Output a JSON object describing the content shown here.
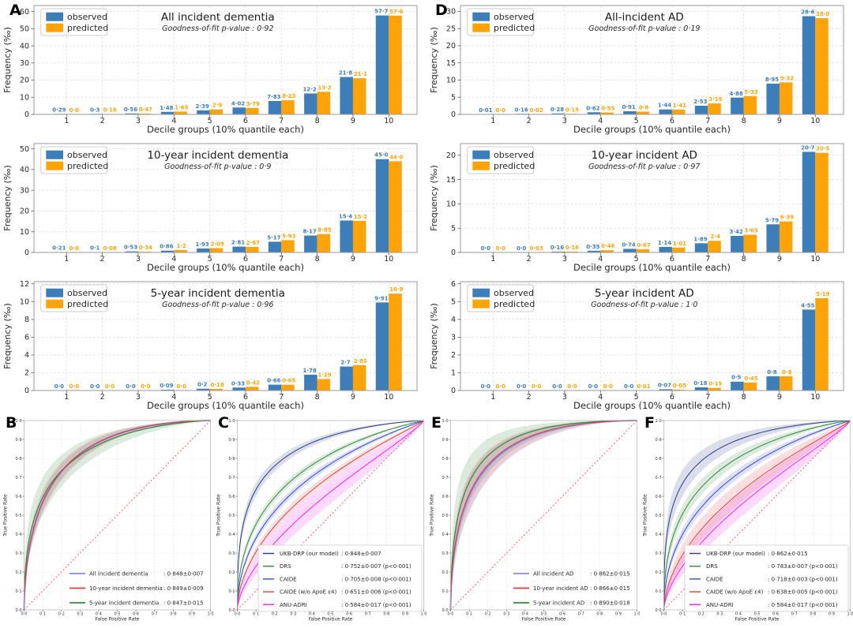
{
  "panel_letters": {
    "A": "A",
    "B": "B",
    "C": "C",
    "D": "D",
    "E": "E",
    "F": "F"
  },
  "chart_data": {
    "bar_common": {
      "type": "bar",
      "xlabel": "Decile groups (10% quantile each)",
      "ylabel": "Frequency (‰)",
      "categories": [
        "1",
        "2",
        "3",
        "4",
        "5",
        "6",
        "7",
        "8",
        "9",
        "10"
      ],
      "legend": {
        "observed": "observed",
        "predicted": "predicted"
      },
      "colors": {
        "observed": "#3d7eb8",
        "predicted": "#ffa408"
      },
      "legend_position": "upper left",
      "grid": true
    },
    "bar_charts": [
      {
        "title": "All incident dementia",
        "subtitle": "Goodness-of-fit p-value : 0·92",
        "observed": [
          0.29,
          0.3,
          0.56,
          1.48,
          2.39,
          4.02,
          7.83,
          12.2,
          21.8,
          57.7
        ],
        "predicted": [
          0.0,
          0.16,
          0.47,
          1.65,
          2.9,
          3.79,
          8.23,
          13.2,
          21.1,
          57.6
        ],
        "observed_labels": [
          "0·29",
          "0·3",
          "0·56",
          "1·48",
          "2·39",
          "4·02",
          "7·83",
          "12·2",
          "21·8",
          "57·7"
        ],
        "predicted_labels": [
          "0·0",
          "0·16",
          "0·47",
          "1·65",
          "2·9",
          "3·79",
          "8·23",
          "13·2",
          "21·1",
          "57·6"
        ],
        "ymax": 60,
        "ystep": 10,
        "ylim": 63.5
      },
      {
        "title": "10-year incident dementia",
        "subtitle": "Goodness-of-fit p-value : 0·9",
        "observed": [
          0.21,
          0.1,
          0.53,
          0.86,
          1.93,
          2.81,
          5.17,
          8.17,
          15.4,
          45.0
        ],
        "predicted": [
          0.0,
          0.08,
          0.34,
          1.2,
          2.09,
          2.67,
          5.93,
          8.85,
          15.2,
          44.0
        ],
        "observed_labels": [
          "0·21",
          "0·1",
          "0·53",
          "0·86",
          "1·93",
          "2·81",
          "5·17",
          "8·17",
          "15·4",
          "45·0"
        ],
        "predicted_labels": [
          "0·0",
          "0·08",
          "0·34",
          "1·2",
          "2·09",
          "2·67",
          "5·93",
          "8·85",
          "15·2",
          "44·0"
        ],
        "ymax": 50,
        "ystep": 10,
        "ylim": 52.5
      },
      {
        "title": "5-year incident dementia",
        "subtitle": "Goodness-of-fit p-value : 0·96",
        "observed": [
          0.0,
          0.0,
          0.0,
          0.09,
          0.2,
          0.33,
          0.66,
          1.78,
          2.7,
          9.91
        ],
        "predicted": [
          0.0,
          0.0,
          0.0,
          0.0,
          0.18,
          0.42,
          0.65,
          1.29,
          2.85,
          10.9
        ],
        "observed_labels": [
          "0·0",
          "0·0",
          "0·0",
          "0·09",
          "0·2",
          "0·33",
          "0·66",
          "1·78",
          "2·7",
          "9·91"
        ],
        "predicted_labels": [
          "0·0",
          "0·0",
          "0·0",
          "0·0",
          "0·18",
          "0·42",
          "0·65",
          "1·29",
          "2·85",
          "10·9"
        ],
        "ymax": 12,
        "ystep": 2,
        "ylim": 12.25
      },
      {
        "title": "All-incident AD",
        "subtitle": "Goodness-of-fit p-value : 0·19",
        "observed": [
          0.01,
          0.16,
          0.28,
          0.62,
          0.91,
          1.44,
          2.53,
          4.88,
          8.95,
          28.6
        ],
        "predicted": [
          0.0,
          0.02,
          0.15,
          0.55,
          0.8,
          1.41,
          3.19,
          5.33,
          9.32,
          28.0
        ],
        "observed_labels": [
          "0·01",
          "0·16",
          "0·28",
          "0·62",
          "0·91",
          "1·44",
          "2·53",
          "4·88",
          "8·95",
          "28·6"
        ],
        "predicted_labels": [
          "0·0",
          "0·02",
          "0·15",
          "0·55",
          "0·8",
          "1·41",
          "3·19",
          "5·33",
          "9·32",
          "28·0"
        ],
        "ymax": 30,
        "ystep": 5,
        "ylim": 31.7
      },
      {
        "title": "10-year incident AD",
        "subtitle": "Goodness-of-fit p-value : 0·97",
        "observed": [
          0.0,
          0.0,
          0.16,
          0.35,
          0.74,
          1.14,
          1.89,
          3.42,
          5.79,
          20.7
        ],
        "predicted": [
          0.0,
          0.03,
          0.16,
          0.46,
          0.67,
          1.01,
          2.4,
          3.65,
          6.39,
          20.5
        ],
        "observed_labels": [
          "0·0",
          "0·0",
          "0·16",
          "0·35",
          "0·74",
          "1·14",
          "1·89",
          "3·42",
          "5·79",
          "20·7"
        ],
        "predicted_labels": [
          "0·0",
          "0·03",
          "0·16",
          "0·46",
          "0·67",
          "1·01",
          "2·4",
          "3·65",
          "6·39",
          "20·5"
        ],
        "ymax": 20,
        "ystep": 5,
        "ylim": 22.4
      },
      {
        "title": "5-year incident AD",
        "subtitle": "Goodness-of-fit p-value : 1·0",
        "observed": [
          0.0,
          0.0,
          0.0,
          0.0,
          0.0,
          0.07,
          0.18,
          0.5,
          0.8,
          4.55
        ],
        "predicted": [
          0.0,
          0.0,
          0.0,
          0.0,
          0.01,
          0.05,
          0.15,
          0.45,
          0.8,
          5.19
        ],
        "observed_labels": [
          "0·0",
          "0·0",
          "0·0",
          "0·0",
          "0·0",
          "0·07",
          "0·18",
          "0·5",
          "0·8",
          "4·55"
        ],
        "predicted_labels": [
          "0·0",
          "0·0",
          "0·0",
          "0·0",
          "0·01",
          "0·05",
          "0·15",
          "0·45",
          "0·8",
          "5·19"
        ],
        "ymax": 6,
        "ystep": 1,
        "ylim": 6.12
      }
    ],
    "roc_common": {
      "type": "line",
      "xlabel": "False Positive Rate",
      "ylabel": "True Positive Rate",
      "ticks": [
        "0·0",
        "0·1",
        "0·2",
        "0·3",
        "0·4",
        "0·5",
        "0·6",
        "0·7",
        "0·8",
        "0·9",
        "1·0"
      ],
      "xlim": [
        0,
        1
      ],
      "ylim": [
        0,
        1
      ],
      "diagonal_color": "#ff5252",
      "grid": true
    },
    "roc_charts": [
      {
        "legend_boxed": false,
        "legend_x": 88,
        "slope": 1.0,
        "boost": 0,
        "series": [
          {
            "name": "All incident dementia",
            "auc": 0.848,
            "auc_label": ": 0·848±0·007",
            "color": "#8888e8",
            "band": 0.02,
            "width": 2.0
          },
          {
            "name": "5-year incident dementia",
            "auc": 0.847,
            "auc_label": ": 0·847±0·015",
            "color": "#2e8b37",
            "band": 0.045,
            "width": 1.2,
            "slope": 0.88,
            "legend_row": 2
          },
          {
            "name": "10-year incident dementia",
            "auc": 0.849,
            "auc_label": ": 0·849±0·009",
            "color": "#e03c3c",
            "band": 0.024,
            "width": 1.0,
            "legend_row": 1
          }
        ]
      },
      {
        "legend_boxed": true,
        "legend_x": 63,
        "slope": 0.82,
        "boost": 0.012,
        "series": [
          {
            "name": "ANU-ADRI",
            "auc": 0.584,
            "auc_label": ": 0·584±0·017 (p<0·001)",
            "color": "#ff1fff",
            "band": 0.048,
            "width": 1.0,
            "legend_row": 4
          },
          {
            "name": "CAIDE (w/o ApoE ε4)",
            "auc": 0.651,
            "auc_label": ": 0·651±0·006 (p<0·001)",
            "color": "#dd4444",
            "band": 0.018,
            "width": 1.0,
            "legend_row": 3
          },
          {
            "name": "CAIDE",
            "auc": 0.705,
            "auc_label": ": 0·705±0·008 (p<0·001)",
            "color": "#3347d1",
            "band": 0.014,
            "width": 1.0,
            "legend_row": 2
          },
          {
            "name": "DRS",
            "auc": 0.752,
            "auc_label": ": 0·752±0·007 (p<0·001)",
            "color": "#2e8b3c",
            "band": 0.014,
            "width": 1.0,
            "legend_row": 1
          },
          {
            "name": "UKB-DRP (our model)",
            "auc": 0.848,
            "auc_label": ": 0·848±0·007",
            "color": "#2c3a88",
            "band": 0.016,
            "width": 1.0,
            "legend_row": 0
          }
        ]
      },
      {
        "legend_boxed": false,
        "legend_x": 110,
        "slope": 1.0,
        "boost": 0,
        "series": [
          {
            "name": "All incident AD",
            "auc": 0.862,
            "auc_label": ": 0·862±0·015",
            "color": "#8888e8",
            "band": 0.038,
            "width": 2.0
          },
          {
            "name": "5-year incident AD",
            "auc": 0.89,
            "auc_label": ": 0·890±0·018",
            "color": "#2e8b37",
            "band": 0.045,
            "width": 1.2,
            "legend_row": 2
          },
          {
            "name": "10-year incident AD",
            "auc": 0.866,
            "auc_label": ": 0·866±0·015",
            "color": "#e03c3c",
            "band": 0.038,
            "width": 1.0,
            "legend_row": 1
          }
        ]
      },
      {
        "legend_boxed": true,
        "legend_x": 63,
        "slope": 0.82,
        "boost": 0.012,
        "series": [
          {
            "name": "ANU-ADRI",
            "auc": 0.584,
            "auc_label": ": 0·584±0·017 (p<0·001)",
            "color": "#ff1fff",
            "band": 0.048,
            "width": 1.0,
            "legend_row": 4
          },
          {
            "name": "CAIDE (w/o ApoE ε4)",
            "auc": 0.638,
            "auc_label": ": 0·638±0·005 (p<0·001)",
            "color": "#dd4444",
            "band": 0.042,
            "width": 1.0,
            "legend_row": 3
          },
          {
            "name": "CAIDE",
            "auc": 0.718,
            "auc_label": ": 0·718±0·003 (p<0·001)",
            "color": "#3347d1",
            "band": 0.02,
            "width": 1.0,
            "legend_row": 2
          },
          {
            "name": "DRS",
            "auc": 0.783,
            "auc_label": ": 0·783±0·007 (p<0·001)",
            "color": "#2e8b3c",
            "band": 0.024,
            "width": 1.0,
            "legend_row": 1
          },
          {
            "name": "UKB-DRP (our model)",
            "auc": 0.862,
            "auc_label": ": 0·862±0·015",
            "color": "#2c3a88",
            "band": 0.03,
            "width": 1.0,
            "legend_row": 0
          }
        ]
      }
    ]
  }
}
